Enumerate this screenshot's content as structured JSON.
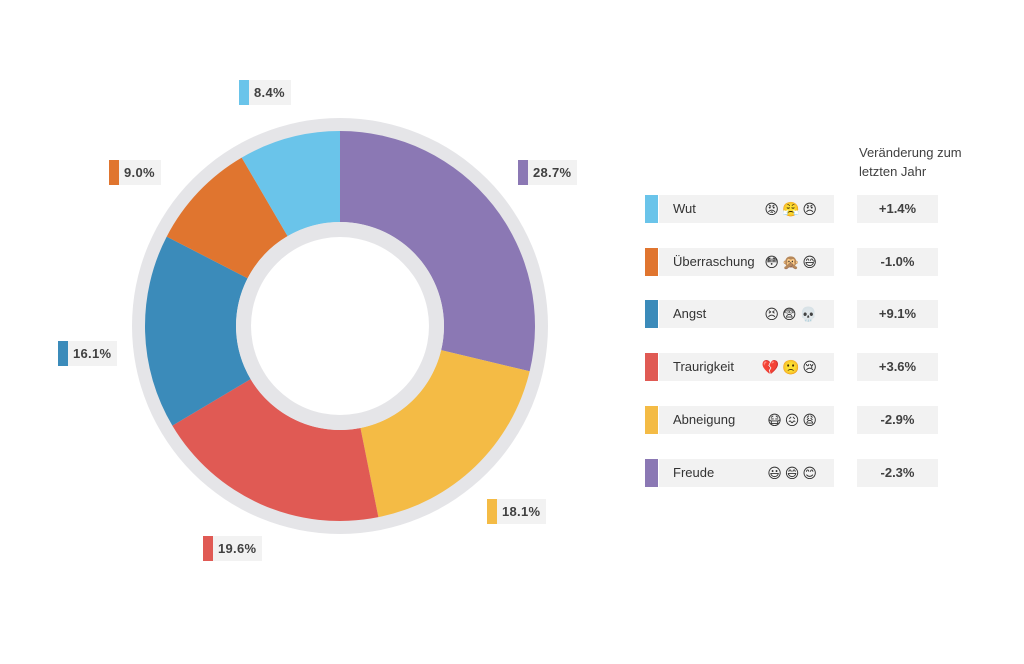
{
  "chart_data": {
    "type": "pie",
    "variant": "donut",
    "categories": [
      "Freude",
      "Abneigung",
      "Traurigkeit",
      "Angst",
      "Überraschung",
      "Wut"
    ],
    "values": [
      28.7,
      18.1,
      19.6,
      16.1,
      9.0,
      8.4
    ],
    "labels": [
      "28.7%",
      "18.1%",
      "19.6%",
      "16.1%",
      "9.0%",
      "8.4%"
    ],
    "colors": [
      "#8b78b4",
      "#f4bb45",
      "#e05a54",
      "#3b8bba",
      "#e0752f",
      "#6ac4ea"
    ],
    "unit": "%",
    "title": "",
    "legend_placement": "right"
  },
  "legend": {
    "header": "Veränderung zum letzten Jahr",
    "rows": [
      {
        "label": "Wut",
        "emojis": "😡😤😠",
        "change": "+1.4%",
        "color": "#6ac4ea"
      },
      {
        "label": "Überraschung",
        "emojis": "😳🙊😅",
        "change": "-1.0%",
        "color": "#e0752f"
      },
      {
        "label": "Angst",
        "emojis": "😣😨💀",
        "change": "+9.1%",
        "color": "#3b8bba"
      },
      {
        "label": "Traurigkeit",
        "emojis": "💔🙁😢",
        "change": "+3.6%",
        "color": "#e05a54"
      },
      {
        "label": "Abneigung",
        "emojis": "😷😖😩",
        "change": "-2.9%",
        "color": "#f4bb45"
      },
      {
        "label": "Freude",
        "emojis": "😃😄😊",
        "change": "-2.3%",
        "color": "#8b78b4"
      }
    ]
  }
}
